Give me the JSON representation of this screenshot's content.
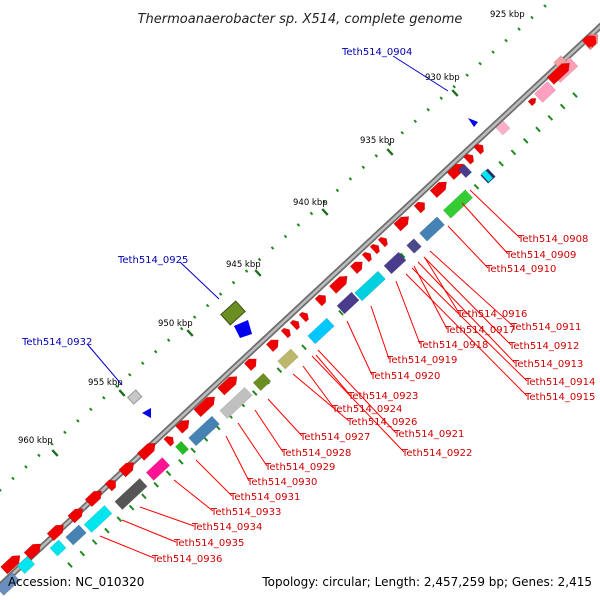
{
  "title": "Thermoanaerobacter sp. X514, complete genome",
  "footer": {
    "accession": "Accession: NC_010320",
    "summary": "Topology: circular; Length: 2,457,259 bp; Genes: 2,415"
  },
  "colors": {
    "backbone": "#8c8c8c",
    "dots": "#1f8a1f",
    "forward_label": "#d00000",
    "highlight_label": "#0000b0"
  },
  "ticks": [
    "925 kbp",
    "930 kbp",
    "935 kbp",
    "940 kbp",
    "945 kbp",
    "950 kbp",
    "955 kbp",
    "960 kbp"
  ],
  "highlighted_genes": [
    "Teth514_0904",
    "Teth514_0925",
    "Teth514_0932"
  ],
  "gene_labels": [
    "Teth514_0908",
    "Teth514_0909",
    "Teth514_0910",
    "Teth514_0911",
    "Teth514_0912",
    "Teth514_0913",
    "Teth514_0914",
    "Teth514_0915",
    "Teth514_0916",
    "Teth514_0917",
    "Teth514_0918",
    "Teth514_0919",
    "Teth514_0920",
    "Teth514_0921",
    "Teth514_0922",
    "Teth514_0923",
    "Teth514_0924",
    "Teth514_0926",
    "Teth514_0927",
    "Teth514_0928",
    "Teth514_0929",
    "Teth514_0930",
    "Teth514_0931",
    "Teth514_0933",
    "Teth514_0934",
    "Teth514_0935",
    "Teth514_0936"
  ]
}
